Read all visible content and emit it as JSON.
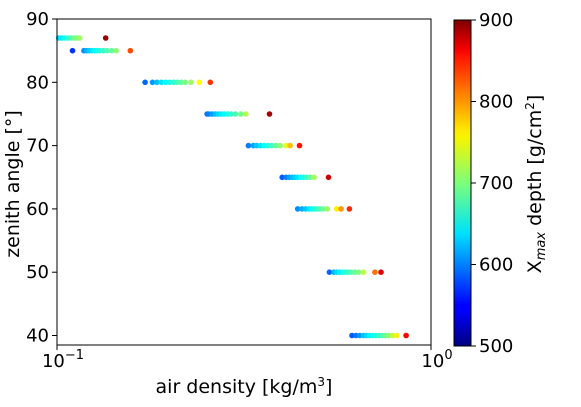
{
  "chart_data": {
    "type": "scatter",
    "xlabel": "air density [kg/m",
    "xlabel_sup": "3",
    "xlabel_end": "]",
    "ylabel": "zenith angle [°]",
    "xscale": "log",
    "xlim": [
      0.1,
      1.0
    ],
    "ylim": [
      38.5,
      90
    ],
    "x_ticks": [
      {
        "value": 0.1,
        "base": "10",
        "exp": "−1"
      },
      {
        "value": 1.0,
        "base": "10",
        "exp": "0"
      }
    ],
    "y_ticks": [
      {
        "value": 40,
        "label": "40"
      },
      {
        "value": 50,
        "label": "50"
      },
      {
        "value": 60,
        "label": "60"
      },
      {
        "value": 70,
        "label": "70"
      },
      {
        "value": 80,
        "label": "80"
      },
      {
        "value": 90,
        "label": "90"
      }
    ],
    "grid": false,
    "colormap": "jet",
    "colorbar": {
      "range": [
        500,
        900
      ],
      "ticks": [
        {
          "value": 500,
          "label": "500"
        },
        {
          "value": 600,
          "label": "600"
        },
        {
          "value": 700,
          "label": "700"
        },
        {
          "value": 800,
          "label": "800"
        },
        {
          "value": 900,
          "label": "900"
        }
      ],
      "label_pre": "X",
      "label_sub": "max",
      "label_mid": " depth [g/cm",
      "label_sup": "2",
      "label_end": "]"
    },
    "points": [
      [
        0.101,
        87,
        635
      ],
      [
        0.103,
        87,
        645
      ],
      [
        0.105,
        87,
        655
      ],
      [
        0.107,
        87,
        668
      ],
      [
        0.109,
        87,
        680
      ],
      [
        0.111,
        87,
        692
      ],
      [
        0.113,
        87,
        702
      ],
      [
        0.115,
        87,
        712
      ],
      [
        0.135,
        87,
        890
      ],
      [
        0.11,
        85,
        570
      ],
      [
        0.118,
        85,
        605
      ],
      [
        0.12,
        85,
        618
      ],
      [
        0.122,
        85,
        630
      ],
      [
        0.124,
        85,
        640
      ],
      [
        0.126,
        85,
        648
      ],
      [
        0.128,
        85,
        655
      ],
      [
        0.13,
        85,
        662
      ],
      [
        0.133,
        85,
        670
      ],
      [
        0.136,
        85,
        680
      ],
      [
        0.14,
        85,
        690
      ],
      [
        0.144,
        85,
        705
      ],
      [
        0.157,
        85,
        820
      ],
      [
        0.172,
        80,
        590
      ],
      [
        0.18,
        80,
        610
      ],
      [
        0.185,
        80,
        625
      ],
      [
        0.19,
        80,
        640
      ],
      [
        0.195,
        80,
        650
      ],
      [
        0.2,
        80,
        660
      ],
      [
        0.205,
        80,
        668
      ],
      [
        0.21,
        80,
        678
      ],
      [
        0.215,
        80,
        688
      ],
      [
        0.22,
        80,
        698
      ],
      [
        0.228,
        80,
        710
      ],
      [
        0.24,
        80,
        750
      ],
      [
        0.257,
        80,
        830
      ],
      [
        0.252,
        75,
        595
      ],
      [
        0.255,
        75,
        600
      ],
      [
        0.26,
        75,
        612
      ],
      [
        0.265,
        75,
        625
      ],
      [
        0.27,
        75,
        635
      ],
      [
        0.275,
        75,
        642
      ],
      [
        0.28,
        75,
        650
      ],
      [
        0.286,
        75,
        658
      ],
      [
        0.292,
        75,
        668
      ],
      [
        0.3,
        75,
        680
      ],
      [
        0.31,
        75,
        695
      ],
      [
        0.32,
        75,
        720
      ],
      [
        0.37,
        75,
        885
      ],
      [
        0.325,
        70,
        600
      ],
      [
        0.335,
        70,
        615
      ],
      [
        0.342,
        70,
        628
      ],
      [
        0.35,
        70,
        640
      ],
      [
        0.358,
        70,
        650
      ],
      [
        0.366,
        70,
        662
      ],
      [
        0.375,
        70,
        675
      ],
      [
        0.385,
        70,
        690
      ],
      [
        0.395,
        70,
        705
      ],
      [
        0.41,
        70,
        740
      ],
      [
        0.42,
        70,
        775
      ],
      [
        0.445,
        70,
        845
      ],
      [
        0.4,
        65,
        585
      ],
      [
        0.41,
        65,
        600
      ],
      [
        0.418,
        65,
        612
      ],
      [
        0.426,
        65,
        625
      ],
      [
        0.433,
        65,
        632
      ],
      [
        0.44,
        65,
        640
      ],
      [
        0.448,
        65,
        650
      ],
      [
        0.456,
        65,
        660
      ],
      [
        0.465,
        65,
        672
      ],
      [
        0.475,
        65,
        688
      ],
      [
        0.487,
        65,
        712
      ],
      [
        0.532,
        65,
        870
      ],
      [
        0.44,
        60,
        605
      ],
      [
        0.452,
        60,
        618
      ],
      [
        0.462,
        60,
        628
      ],
      [
        0.472,
        60,
        640
      ],
      [
        0.48,
        60,
        650
      ],
      [
        0.488,
        60,
        660
      ],
      [
        0.496,
        60,
        670
      ],
      [
        0.505,
        60,
        680
      ],
      [
        0.515,
        60,
        692
      ],
      [
        0.528,
        60,
        710
      ],
      [
        0.56,
        60,
        755
      ],
      [
        0.575,
        60,
        790
      ],
      [
        0.605,
        60,
        835
      ],
      [
        0.535,
        50,
        590
      ],
      [
        0.55,
        50,
        620
      ],
      [
        0.56,
        50,
        635
      ],
      [
        0.57,
        50,
        645
      ],
      [
        0.58,
        50,
        655
      ],
      [
        0.59,
        50,
        665
      ],
      [
        0.6,
        50,
        672
      ],
      [
        0.612,
        50,
        680
      ],
      [
        0.625,
        50,
        690
      ],
      [
        0.64,
        50,
        700
      ],
      [
        0.66,
        50,
        722
      ],
      [
        0.708,
        50,
        805
      ],
      [
        0.735,
        50,
        860
      ],
      [
        0.615,
        40,
        585
      ],
      [
        0.63,
        40,
        598
      ],
      [
        0.645,
        40,
        610
      ],
      [
        0.66,
        40,
        625
      ],
      [
        0.672,
        40,
        635
      ],
      [
        0.685,
        40,
        645
      ],
      [
        0.698,
        40,
        652
      ],
      [
        0.712,
        40,
        662
      ],
      [
        0.726,
        40,
        670
      ],
      [
        0.74,
        40,
        680
      ],
      [
        0.755,
        40,
        692
      ],
      [
        0.77,
        40,
        705
      ],
      [
        0.79,
        40,
        725
      ],
      [
        0.81,
        40,
        755
      ],
      [
        0.858,
        40,
        850
      ]
    ]
  }
}
